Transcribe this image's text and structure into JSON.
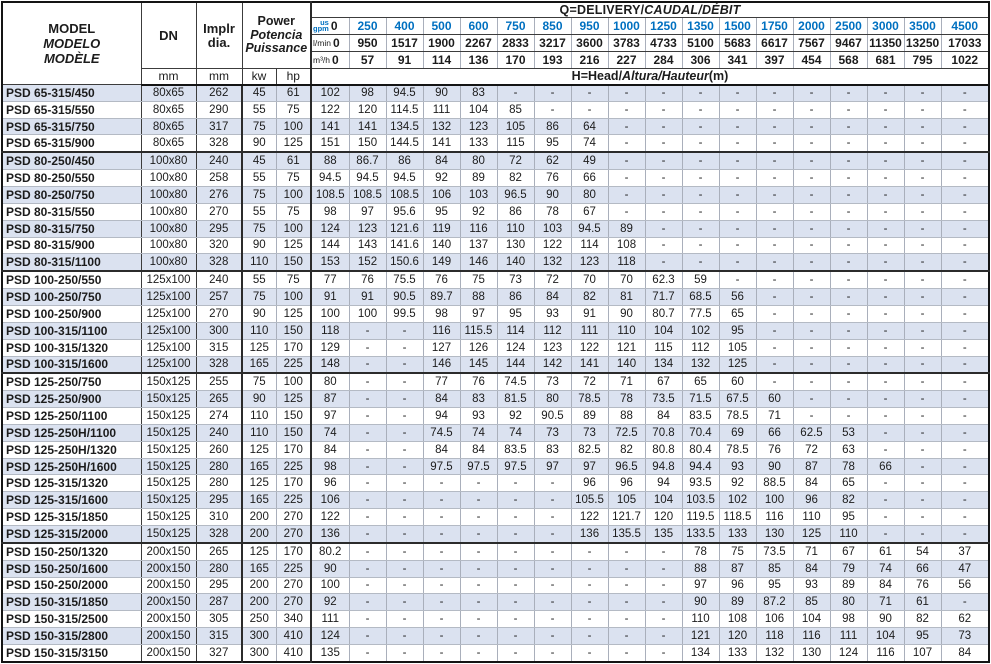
{
  "colors": {
    "accent_blue": "#0070c0",
    "stripe": "#dbe2f0",
    "border_dark": "#2b2b2b",
    "border_light": "#a9afbb"
  },
  "table": {
    "header": {
      "model_lines": [
        "MODEL",
        "MODELO",
        "MODÈLE"
      ],
      "dn_label": "DN",
      "dia_lines": [
        "Implr",
        "dia."
      ],
      "power_lines": [
        "Power",
        "Potencia",
        "Puissance"
      ],
      "mm": "mm",
      "kw": "kw",
      "hp": "hp",
      "q_title": {
        "main": "Q=DELIVERY/",
        "italic": "CAUDAL/DÉBIT"
      },
      "h_title": {
        "main": "H=Head/",
        "italic": "Altura/Hauteur",
        "suffix": "(m)"
      },
      "unit_gpm": [
        "us",
        "gpm"
      ],
      "unit_lmin": "l/min",
      "unit_m3h": "m³/h",
      "gpm": [
        "0",
        "250",
        "400",
        "500",
        "600",
        "750",
        "850",
        "950",
        "1000",
        "1250",
        "1350",
        "1500",
        "1750",
        "2000",
        "2500",
        "3000",
        "3500",
        "4500"
      ],
      "lmin": [
        "0",
        "950",
        "1517",
        "1900",
        "2267",
        "2833",
        "3217",
        "3600",
        "3783",
        "4733",
        "5100",
        "5683",
        "6617",
        "7567",
        "9467",
        "11350",
        "13250",
        "17033"
      ],
      "m3h": [
        "0",
        "57",
        "91",
        "114",
        "136",
        "170",
        "193",
        "216",
        "227",
        "284",
        "306",
        "341",
        "397",
        "454",
        "568",
        "681",
        "795",
        "1022"
      ]
    },
    "group_end_rows": [
      3,
      10,
      16,
      26
    ],
    "rows": [
      {
        "model": "PSD 65-315/450",
        "dn": "80x65",
        "dia": "262",
        "kw": "45",
        "hp": "61",
        "heads": [
          "102",
          "98",
          "94.5",
          "90",
          "83",
          "-",
          "-",
          "-",
          "-",
          "-",
          "-",
          "-",
          "-",
          "-",
          "-",
          "-",
          "-",
          "-"
        ]
      },
      {
        "model": "PSD 65-315/550",
        "dn": "80x65",
        "dia": "290",
        "kw": "55",
        "hp": "75",
        "heads": [
          "122",
          "120",
          "114.5",
          "111",
          "104",
          "85",
          "-",
          "-",
          "-",
          "-",
          "-",
          "-",
          "-",
          "-",
          "-",
          "-",
          "-",
          "-"
        ]
      },
      {
        "model": "PSD 65-315/750",
        "dn": "80x65",
        "dia": "317",
        "kw": "75",
        "hp": "100",
        "heads": [
          "141",
          "141",
          "134.5",
          "132",
          "123",
          "105",
          "86",
          "64",
          "-",
          "-",
          "-",
          "-",
          "-",
          "-",
          "-",
          "-",
          "-",
          "-"
        ]
      },
      {
        "model": "PSD 65-315/900",
        "dn": "80x65",
        "dia": "328",
        "kw": "90",
        "hp": "125",
        "heads": [
          "151",
          "150",
          "144.5",
          "141",
          "133",
          "115",
          "95",
          "74",
          "-",
          "-",
          "-",
          "-",
          "-",
          "-",
          "-",
          "-",
          "-",
          "-"
        ]
      },
      {
        "model": "PSD 80-250/450",
        "dn": "100x80",
        "dia": "240",
        "kw": "45",
        "hp": "61",
        "heads": [
          "88",
          "86.7",
          "86",
          "84",
          "80",
          "72",
          "62",
          "49",
          "-",
          "-",
          "-",
          "-",
          "-",
          "-",
          "-",
          "-",
          "-",
          "-"
        ]
      },
      {
        "model": "PSD 80-250/550",
        "dn": "100x80",
        "dia": "258",
        "kw": "55",
        "hp": "75",
        "heads": [
          "94.5",
          "94.5",
          "94.5",
          "92",
          "89",
          "82",
          "76",
          "66",
          "-",
          "-",
          "-",
          "-",
          "-",
          "-",
          "-",
          "-",
          "-",
          "-"
        ]
      },
      {
        "model": "PSD 80-250/750",
        "dn": "100x80",
        "dia": "276",
        "kw": "75",
        "hp": "100",
        "heads": [
          "108.5",
          "108.5",
          "108.5",
          "106",
          "103",
          "96.5",
          "90",
          "80",
          "-",
          "-",
          "-",
          "-",
          "-",
          "-",
          "-",
          "-",
          "-",
          "-"
        ]
      },
      {
        "model": "PSD 80-315/550",
        "dn": "100x80",
        "dia": "270",
        "kw": "55",
        "hp": "75",
        "heads": [
          "98",
          "97",
          "95.6",
          "95",
          "92",
          "86",
          "78",
          "67",
          "-",
          "-",
          "-",
          "-",
          "-",
          "-",
          "-",
          "-",
          "-",
          "-"
        ]
      },
      {
        "model": "PSD 80-315/750",
        "dn": "100x80",
        "dia": "295",
        "kw": "75",
        "hp": "100",
        "heads": [
          "124",
          "123",
          "121.6",
          "119",
          "116",
          "110",
          "103",
          "94.5",
          "89",
          "-",
          "-",
          "-",
          "-",
          "-",
          "-",
          "-",
          "-",
          "-"
        ]
      },
      {
        "model": "PSD 80-315/900",
        "dn": "100x80",
        "dia": "320",
        "kw": "90",
        "hp": "125",
        "heads": [
          "144",
          "143",
          "141.6",
          "140",
          "137",
          "130",
          "122",
          "114",
          "108",
          "-",
          "-",
          "-",
          "-",
          "-",
          "-",
          "-",
          "-",
          "-"
        ]
      },
      {
        "model": "PSD 80-315/1100",
        "dn": "100x80",
        "dia": "328",
        "kw": "110",
        "hp": "150",
        "heads": [
          "153",
          "152",
          "150.6",
          "149",
          "146",
          "140",
          "132",
          "123",
          "118",
          "-",
          "-",
          "-",
          "-",
          "-",
          "-",
          "-",
          "-",
          "-"
        ]
      },
      {
        "model": "PSD 100-250/550",
        "dn": "125x100",
        "dia": "240",
        "kw": "55",
        "hp": "75",
        "heads": [
          "77",
          "76",
          "75.5",
          "76",
          "75",
          "73",
          "72",
          "70",
          "70",
          "62.3",
          "59",
          "-",
          "-",
          "-",
          "-",
          "-",
          "-",
          "-"
        ]
      },
      {
        "model": "PSD 100-250/750",
        "dn": "125x100",
        "dia": "257",
        "kw": "75",
        "hp": "100",
        "heads": [
          "91",
          "91",
          "90.5",
          "89.7",
          "88",
          "86",
          "84",
          "82",
          "81",
          "71.7",
          "68.5",
          "56",
          "-",
          "-",
          "-",
          "-",
          "-",
          "-"
        ]
      },
      {
        "model": "PSD 100-250/900",
        "dn": "125x100",
        "dia": "270",
        "kw": "90",
        "hp": "125",
        "heads": [
          "100",
          "100",
          "99.5",
          "98",
          "97",
          "95",
          "93",
          "91",
          "90",
          "80.7",
          "77.5",
          "65",
          "-",
          "-",
          "-",
          "-",
          "-",
          "-"
        ]
      },
      {
        "model": "PSD 100-315/1100",
        "dn": "125x100",
        "dia": "300",
        "kw": "110",
        "hp": "150",
        "heads": [
          "118",
          "-",
          "-",
          "116",
          "115.5",
          "114",
          "112",
          "111",
          "110",
          "104",
          "102",
          "95",
          "-",
          "-",
          "-",
          "-",
          "-",
          "-"
        ]
      },
      {
        "model": "PSD 100-315/1320",
        "dn": "125x100",
        "dia": "315",
        "kw": "125",
        "hp": "170",
        "heads": [
          "129",
          "-",
          "-",
          "127",
          "126",
          "124",
          "123",
          "122",
          "121",
          "115",
          "112",
          "105",
          "-",
          "-",
          "-",
          "-",
          "-",
          "-"
        ]
      },
      {
        "model": "PSD 100-315/1600",
        "dn": "125x100",
        "dia": "328",
        "kw": "165",
        "hp": "225",
        "heads": [
          "148",
          "-",
          "-",
          "146",
          "145",
          "144",
          "142",
          "141",
          "140",
          "134",
          "132",
          "125",
          "-",
          "-",
          "-",
          "-",
          "-",
          "-"
        ]
      },
      {
        "model": "PSD 125-250/750",
        "dn": "150x125",
        "dia": "255",
        "kw": "75",
        "hp": "100",
        "heads": [
          "80",
          "-",
          "-",
          "77",
          "76",
          "74.5",
          "73",
          "72",
          "71",
          "67",
          "65",
          "60",
          "-",
          "-",
          "-",
          "-",
          "-",
          "-"
        ]
      },
      {
        "model": "PSD 125-250/900",
        "dn": "150x125",
        "dia": "265",
        "kw": "90",
        "hp": "125",
        "heads": [
          "87",
          "-",
          "-",
          "84",
          "83",
          "81.5",
          "80",
          "78.5",
          "78",
          "73.5",
          "71.5",
          "67.5",
          "60",
          "-",
          "-",
          "-",
          "-",
          "-"
        ]
      },
      {
        "model": "PSD 125-250/1100",
        "dn": "150x125",
        "dia": "274",
        "kw": "110",
        "hp": "150",
        "heads": [
          "97",
          "-",
          "-",
          "94",
          "93",
          "92",
          "90.5",
          "89",
          "88",
          "84",
          "83.5",
          "78.5",
          "71",
          "-",
          "-",
          "-",
          "-",
          "-"
        ]
      },
      {
        "model": "PSD 125-250H/1100",
        "dn": "150x125",
        "dia": "240",
        "kw": "110",
        "hp": "150",
        "heads": [
          "74",
          "-",
          "-",
          "74.5",
          "74",
          "74",
          "73",
          "73",
          "72.5",
          "70.8",
          "70.4",
          "69",
          "66",
          "62.5",
          "53",
          "-",
          "-",
          "-"
        ]
      },
      {
        "model": "PSD 125-250H/1320",
        "dn": "150x125",
        "dia": "260",
        "kw": "125",
        "hp": "170",
        "heads": [
          "84",
          "-",
          "-",
          "84",
          "84",
          "83.5",
          "83",
          "82.5",
          "82",
          "80.8",
          "80.4",
          "78.5",
          "76",
          "72",
          "63",
          "-",
          "-",
          "-"
        ]
      },
      {
        "model": "PSD 125-250H/1600",
        "dn": "150x125",
        "dia": "280",
        "kw": "165",
        "hp": "225",
        "heads": [
          "98",
          "-",
          "-",
          "97.5",
          "97.5",
          "97.5",
          "97",
          "97",
          "96.5",
          "94.8",
          "94.4",
          "93",
          "90",
          "87",
          "78",
          "66",
          "-",
          "-"
        ]
      },
      {
        "model": "PSD 125-315/1320",
        "dn": "150x125",
        "dia": "280",
        "kw": "125",
        "hp": "170",
        "heads": [
          "96",
          "-",
          "-",
          "-",
          "-",
          "-",
          "-",
          "96",
          "96",
          "94",
          "93.5",
          "92",
          "88.5",
          "84",
          "65",
          "-",
          "-",
          "-"
        ]
      },
      {
        "model": "PSD 125-315/1600",
        "dn": "150x125",
        "dia": "295",
        "kw": "165",
        "hp": "225",
        "heads": [
          "106",
          "-",
          "-",
          "-",
          "-",
          "-",
          "-",
          "105.5",
          "105",
          "104",
          "103.5",
          "102",
          "100",
          "96",
          "82",
          "-",
          "-",
          "-"
        ]
      },
      {
        "model": "PSD 125-315/1850",
        "dn": "150x125",
        "dia": "310",
        "kw": "200",
        "hp": "270",
        "heads": [
          "122",
          "-",
          "-",
          "-",
          "-",
          "-",
          "-",
          "122",
          "121.7",
          "120",
          "119.5",
          "118.5",
          "116",
          "110",
          "95",
          "-",
          "-",
          "-"
        ]
      },
      {
        "model": "PSD 125-315/2000",
        "dn": "150x125",
        "dia": "328",
        "kw": "200",
        "hp": "270",
        "heads": [
          "136",
          "-",
          "-",
          "-",
          "-",
          "-",
          "-",
          "136",
          "135.5",
          "135",
          "133.5",
          "133",
          "130",
          "125",
          "110",
          "-",
          "-",
          "-"
        ]
      },
      {
        "model": "PSD 150-250/1320",
        "dn": "200x150",
        "dia": "265",
        "kw": "125",
        "hp": "170",
        "heads": [
          "80.2",
          "-",
          "-",
          "-",
          "-",
          "-",
          "-",
          "-",
          "-",
          "-",
          "78",
          "75",
          "73.5",
          "71",
          "67",
          "61",
          "54",
          "37"
        ]
      },
      {
        "model": "PSD 150-250/1600",
        "dn": "200x150",
        "dia": "280",
        "kw": "165",
        "hp": "225",
        "heads": [
          "90",
          "-",
          "-",
          "-",
          "-",
          "-",
          "-",
          "-",
          "-",
          "-",
          "88",
          "87",
          "85",
          "84",
          "79",
          "74",
          "66",
          "47"
        ]
      },
      {
        "model": "PSD 150-250/2000",
        "dn": "200x150",
        "dia": "295",
        "kw": "200",
        "hp": "270",
        "heads": [
          "100",
          "-",
          "-",
          "-",
          "-",
          "-",
          "-",
          "-",
          "-",
          "-",
          "97",
          "96",
          "95",
          "93",
          "89",
          "84",
          "76",
          "56"
        ]
      },
      {
        "model": "PSD 150-315/1850",
        "dn": "200x150",
        "dia": "287",
        "kw": "200",
        "hp": "270",
        "heads": [
          "92",
          "-",
          "-",
          "-",
          "-",
          "-",
          "-",
          "-",
          "-",
          "-",
          "90",
          "89",
          "87.2",
          "85",
          "80",
          "71",
          "61",
          "-"
        ]
      },
      {
        "model": "PSD 150-315/2500",
        "dn": "200x150",
        "dia": "305",
        "kw": "250",
        "hp": "340",
        "heads": [
          "111",
          "-",
          "-",
          "-",
          "-",
          "-",
          "-",
          "-",
          "-",
          "-",
          "110",
          "108",
          "106",
          "104",
          "98",
          "90",
          "82",
          "62"
        ]
      },
      {
        "model": "PSD 150-315/2800",
        "dn": "200x150",
        "dia": "315",
        "kw": "300",
        "hp": "410",
        "heads": [
          "124",
          "-",
          "-",
          "-",
          "-",
          "-",
          "-",
          "-",
          "-",
          "-",
          "121",
          "120",
          "118",
          "116",
          "111",
          "104",
          "95",
          "73"
        ]
      },
      {
        "model": "PSD 150-315/3150",
        "dn": "200x150",
        "dia": "327",
        "kw": "300",
        "hp": "410",
        "heads": [
          "135",
          "-",
          "-",
          "-",
          "-",
          "-",
          "-",
          "-",
          "-",
          "-",
          "134",
          "133",
          "132",
          "130",
          "124",
          "116",
          "107",
          "84"
        ]
      }
    ]
  }
}
